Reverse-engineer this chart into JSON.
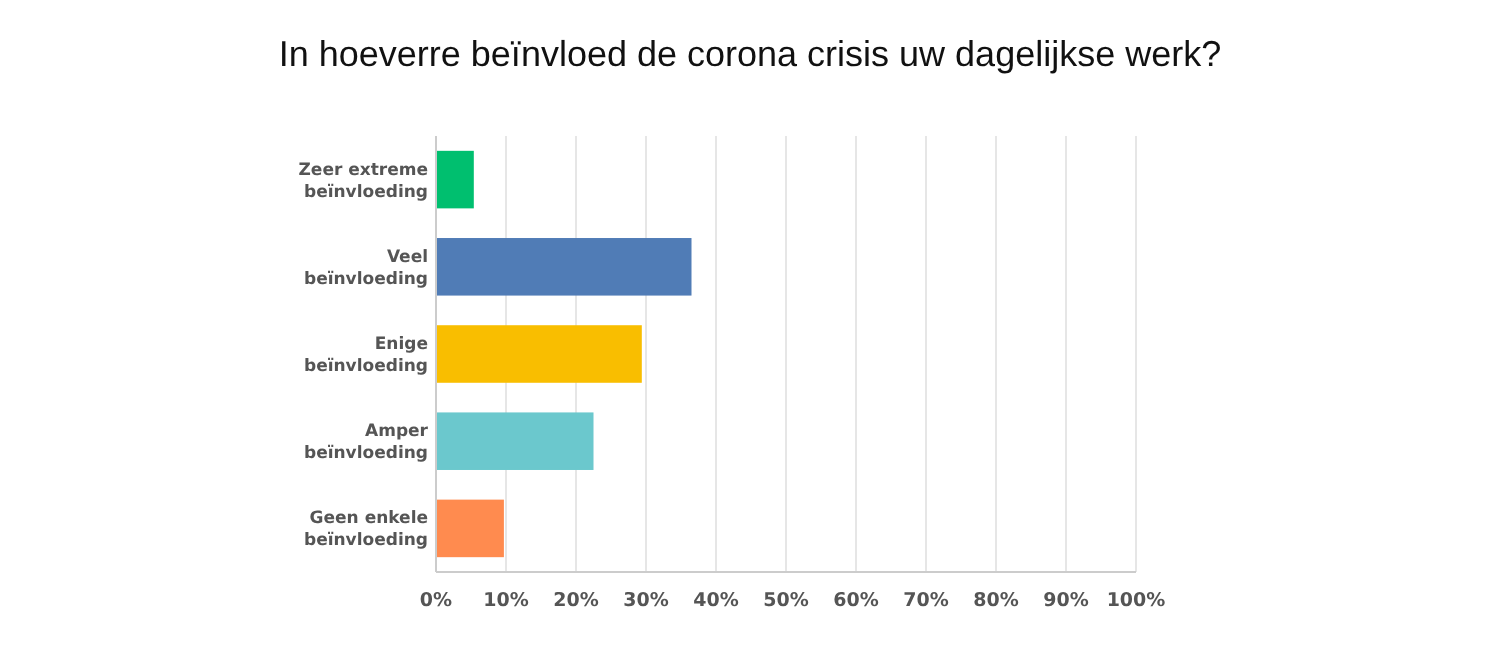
{
  "chart_data": {
    "type": "bar",
    "orientation": "horizontal",
    "title": "In hoeverre beïnvloed de corona crisis uw dagelijkse werk?",
    "categories": [
      "Zeer extreme beïnvloeding",
      "Veel beïnvloeding",
      "Enige beïnvloeding",
      "Amper beïnvloeding",
      "Geen enkele beïnvloeding"
    ],
    "values": [
      5.4,
      36.5,
      29.4,
      22.5,
      9.7
    ],
    "colors": [
      "#00bf6f",
      "#507cb6",
      "#f9be00",
      "#6bc8cd",
      "#ff8b4f"
    ],
    "xlim": [
      0,
      100
    ],
    "xticks": [
      {
        "value": 0,
        "label": "0%"
      },
      {
        "value": 10,
        "label": "10%"
      },
      {
        "value": 20,
        "label": "20%"
      },
      {
        "value": 30,
        "label": "30%"
      },
      {
        "value": 40,
        "label": "40%"
      },
      {
        "value": 50,
        "label": "50%"
      },
      {
        "value": 60,
        "label": "60%"
      },
      {
        "value": 70,
        "label": "70%"
      },
      {
        "value": 80,
        "label": "80%"
      },
      {
        "value": 90,
        "label": "90%"
      },
      {
        "value": 100,
        "label": "100%"
      }
    ],
    "grid": "x"
  }
}
